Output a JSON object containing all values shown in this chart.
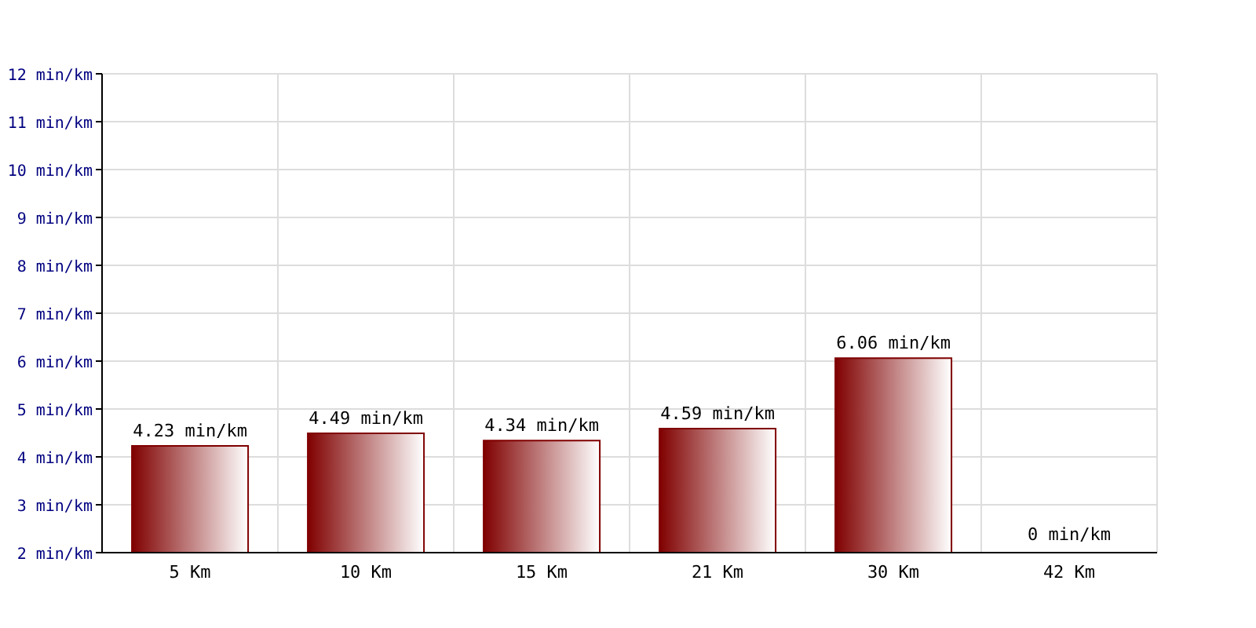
{
  "chart_data": {
    "type": "bar",
    "categories": [
      "5 Km",
      "10 Km",
      "15 Km",
      "21 Km",
      "30 Km",
      "42 Km"
    ],
    "values": [
      4.23,
      4.49,
      4.34,
      4.59,
      6.06,
      null
    ],
    "value_labels": [
      "4.23 min/km",
      "4.49 min/km",
      "4.34 min/km",
      "4.59 min/km",
      "6.06 min/km",
      "0 min/km"
    ],
    "color": "#800000",
    "ylim": [
      2,
      12
    ],
    "yticks": [
      {
        "value": 2,
        "label": "2 min/km"
      },
      {
        "value": 3,
        "label": "3 min/km"
      },
      {
        "value": 4,
        "label": "4 min/km"
      },
      {
        "value": 5,
        "label": "5 min/km"
      },
      {
        "value": 6,
        "label": "6 min/km"
      },
      {
        "value": 7,
        "label": "7 min/km"
      },
      {
        "value": 8,
        "label": "8 min/km"
      },
      {
        "value": 9,
        "label": "9 min/km"
      },
      {
        "value": 10,
        "label": "10 min/km"
      },
      {
        "value": 11,
        "label": "11 min/km"
      },
      {
        "value": 12,
        "label": "12 min/km"
      }
    ],
    "grid": true
  }
}
